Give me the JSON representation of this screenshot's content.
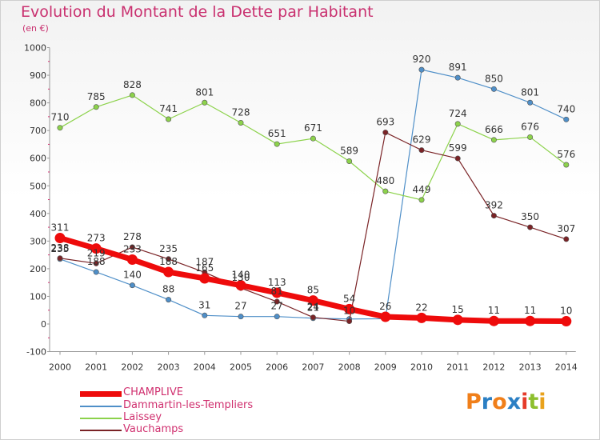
{
  "title": "Evolution du Montant de la Dette par Habitant",
  "unit": "(en €)",
  "logo": {
    "text": "Proxiti",
    "colors": [
      "#f07f1a",
      "#2b7fc4",
      "#f07f1a",
      "#2b7fc4",
      "#e53a2a",
      "#8dbf2e",
      "#e9a21c"
    ]
  },
  "chart_data": {
    "type": "line",
    "x": [
      "2000",
      "2001",
      "2002",
      "2003",
      "2004",
      "2005",
      "2006",
      "2007",
      "2008",
      "2009",
      "2010",
      "2011",
      "2012",
      "2013",
      "2014"
    ],
    "ylim": [
      -100,
      1000
    ],
    "yticks": [
      -100,
      0,
      100,
      200,
      300,
      400,
      500,
      600,
      700,
      800,
      900,
      1000
    ],
    "grid": false,
    "legend_position": "bottom-left",
    "series": [
      {
        "name": "Dammartin-les-Templiers",
        "color": "#4f8fc8",
        "width": 1.2,
        "values": [
          235,
          188,
          140,
          88,
          31,
          27,
          27,
          21,
          18,
          19,
          920,
          891,
          850,
          801,
          740
        ],
        "labels": [
          "235",
          "188",
          "140",
          "88",
          "31",
          "27",
          "27",
          "21",
          "",
          "",
          "920",
          "891",
          "850",
          "801",
          "740"
        ]
      },
      {
        "name": "Laissey",
        "color": "#8cd24b",
        "width": 1.2,
        "values": [
          710,
          785,
          828,
          741,
          801,
          728,
          651,
          671,
          589,
          480,
          449,
          724,
          666,
          676,
          576
        ],
        "labels": [
          "710",
          "785",
          "828",
          "741",
          "801",
          "728",
          "651",
          "671",
          "589",
          "480",
          "449",
          "724",
          "666",
          "676",
          "576"
        ]
      },
      {
        "name": "Vauchamps",
        "color": "#7a2326",
        "width": 1.2,
        "values": [
          238,
          219,
          278,
          235,
          187,
          130,
          81,
          24,
          10,
          693,
          629,
          599,
          392,
          350,
          307
        ],
        "labels": [
          "238",
          "219",
          "278",
          "235",
          "187",
          "130",
          "81",
          "24",
          "10",
          "693",
          "629",
          "599",
          "392",
          "350",
          "307"
        ]
      },
      {
        "name": "CHAMPLIVE",
        "color": "#ee0b0b",
        "width": 7,
        "values": [
          311,
          273,
          233,
          188,
          165,
          140,
          113,
          85,
          54,
          26,
          22,
          15,
          11,
          11,
          10
        ],
        "labels": [
          "311",
          "273",
          "233",
          "188",
          "165",
          "140",
          "113",
          "85",
          "54",
          "26",
          "22",
          "15",
          "11",
          "11",
          "10"
        ]
      }
    ],
    "legend_order": [
      "CHAMPLIVE",
      "Dammartin-les-Templiers",
      "Laissey",
      "Vauchamps"
    ]
  }
}
